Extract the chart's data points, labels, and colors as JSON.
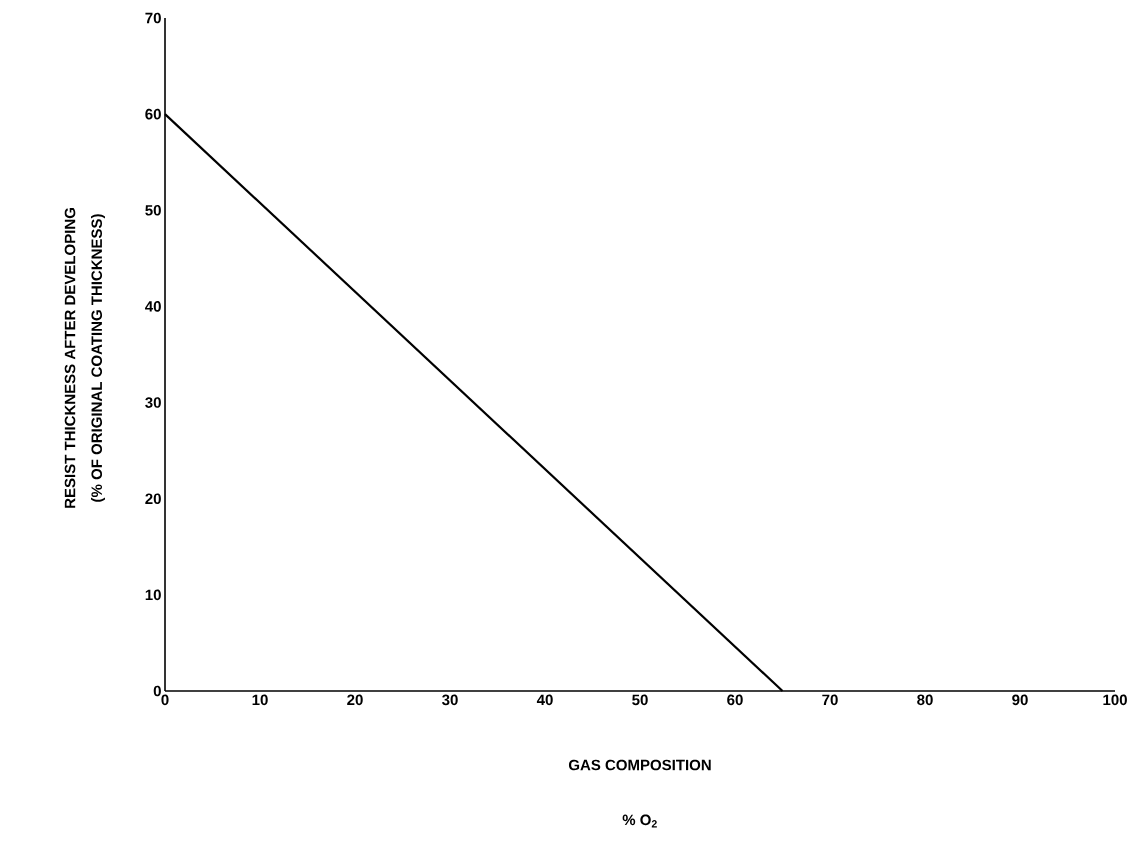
{
  "chart_data": {
    "type": "line",
    "xlabel": "GAS COMPOSITION",
    "ylabel": "RESIST THICKNESS AFTER DEVELOPING",
    "annotations": [
      "(% OF ORIGINAL COATING THICKNESS)",
      "% O$_{2}$"
    ],
    "x": [
      0,
      65
    ],
    "series": [
      {
        "color": "#000000",
        "values": [
          60,
          0
        ]
      }
    ],
    "xlim": [
      0,
      100
    ],
    "ylim": [
      0,
      70
    ],
    "xticks": [
      0,
      10,
      20,
      30,
      40,
      50,
      60,
      70,
      80,
      90,
      100
    ],
    "yticks": [
      0,
      10,
      20,
      30,
      40,
      50,
      60,
      70
    ]
  }
}
